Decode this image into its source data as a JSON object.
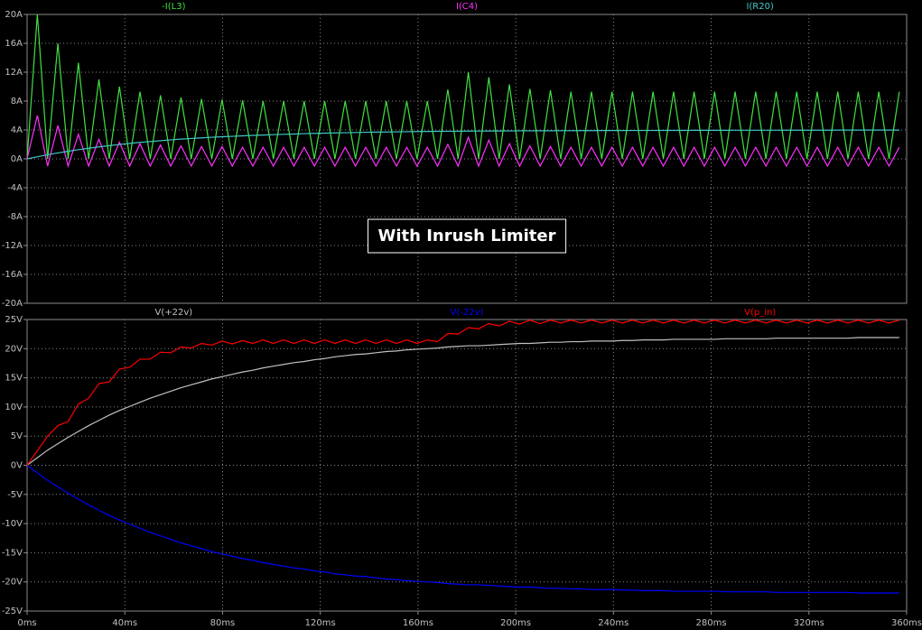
{
  "chart_data": [
    {
      "type": "line",
      "x": [
        0,
        4.2,
        8.4,
        12.6,
        16.8,
        21,
        25.2,
        29.4,
        33.6,
        37.8,
        42,
        46.2,
        50.4,
        54.6,
        58.8,
        63,
        67.2,
        71.4,
        75.6,
        79.8,
        84,
        88.2,
        92.4,
        96.6,
        100.8,
        105,
        109.2,
        113.4,
        117.6,
        121.8,
        126,
        130.2,
        134.4,
        138.6,
        142.8,
        147,
        151.2,
        155.4,
        159.6,
        163.8,
        168,
        172.2,
        176.4,
        180.6,
        184.8,
        189,
        193.2,
        197.4,
        201.6,
        205.8,
        210,
        214.2,
        218.4,
        222.6,
        226.8,
        231,
        235.2,
        239.4,
        243.6,
        247.8,
        252,
        256.2,
        260.4,
        264.6,
        268.8,
        273,
        277.2,
        281.4,
        285.6,
        289.8,
        294,
        298.2,
        302.4,
        306.6,
        310.8,
        315,
        319.2,
        323.4,
        327.6,
        331.8,
        336,
        340.2,
        344.4,
        348.6,
        352.8,
        357
      ],
      "xlim": [
        0,
        360
      ],
      "ylim": [
        -20,
        20
      ],
      "yticks": [
        {
          "value": 20,
          "label": "20A"
        },
        {
          "value": 16,
          "label": "16A"
        },
        {
          "value": 12,
          "label": "12A"
        },
        {
          "value": 8,
          "label": "8A"
        },
        {
          "value": 4,
          "label": "4A"
        },
        {
          "value": 0,
          "label": "0A"
        },
        {
          "value": -4,
          "label": "-4A"
        },
        {
          "value": -8,
          "label": "-8A"
        },
        {
          "value": -12,
          "label": "-12A"
        },
        {
          "value": -16,
          "label": "-16A"
        },
        {
          "value": -20,
          "label": "-20A"
        }
      ],
      "grid": true,
      "annotation": "With Inrush Limiter",
      "series": [
        {
          "name": "-I(L3)",
          "color": "#40e040",
          "values": [
            0,
            20,
            0,
            16,
            0,
            13.3,
            0,
            11,
            0,
            10,
            0,
            9.3,
            0,
            8.8,
            0,
            8.5,
            0,
            8.3,
            0,
            8.2,
            0,
            8.1,
            0,
            8,
            0,
            8,
            0,
            8,
            0,
            8,
            0,
            8,
            0,
            8,
            0,
            8,
            0,
            8,
            0,
            8,
            0,
            9.6,
            0,
            12,
            0,
            11.3,
            0,
            10.3,
            0,
            9.7,
            0,
            9.5,
            0,
            9.3,
            0,
            9.3,
            0,
            9.3,
            0,
            9.3,
            0,
            9.3,
            0,
            9.3,
            0,
            9.3,
            0,
            9.3,
            0,
            9.3,
            0,
            9.3,
            0,
            9.3,
            0,
            9.3,
            0,
            9.3,
            0,
            9.3,
            0,
            9.3,
            0,
            9.3,
            0,
            9.3
          ]
        },
        {
          "name": "I(C4)",
          "color": "#ff30ff",
          "values": [
            0,
            6,
            -1,
            4.6,
            -1,
            3.4,
            -1,
            2.7,
            -1,
            2.3,
            -1,
            2.1,
            -1,
            1.9,
            -1,
            1.8,
            -1,
            1.7,
            -1,
            1.7,
            -1,
            1.6,
            -1,
            1.6,
            -1,
            1.6,
            -1,
            1.6,
            -1,
            1.6,
            -1,
            1.6,
            -1,
            1.6,
            -1,
            1.6,
            -1,
            1.6,
            -1,
            1.6,
            -1,
            2,
            -1,
            3,
            -1,
            2.6,
            -1,
            2.1,
            -1,
            1.8,
            -1,
            1.7,
            -1,
            1.6,
            -1,
            1.6,
            -1,
            1.6,
            -1,
            1.6,
            -1,
            1.6,
            -1,
            1.6,
            -1,
            1.6,
            -1,
            1.6,
            -1,
            1.6,
            -1,
            1.6,
            -1,
            1.6,
            -1,
            1.6,
            -1,
            1.6,
            -1,
            1.6,
            -1,
            1.6,
            -1,
            1.6,
            -1,
            1.6
          ]
        },
        {
          "name": "I(R20)",
          "color": "#40c8c8",
          "values": [
            0,
            0.29,
            0.57,
            0.82,
            1.05,
            1.27,
            1.47,
            1.66,
            1.83,
            1.99,
            2.14,
            2.28,
            2.4,
            2.52,
            2.63,
            2.73,
            2.82,
            2.91,
            2.99,
            3.06,
            3.12,
            3.19,
            3.25,
            3.3,
            3.35,
            3.4,
            3.44,
            3.49,
            3.53,
            3.56,
            3.59,
            3.62,
            3.65,
            3.68,
            3.7,
            3.72,
            3.74,
            3.76,
            3.78,
            3.8,
            3.81,
            3.82,
            3.83,
            3.84,
            3.85,
            3.86,
            3.86,
            3.87,
            3.88,
            3.88,
            3.89,
            3.89,
            3.9,
            3.9,
            3.91,
            3.91,
            3.92,
            3.92,
            3.92,
            3.93,
            3.93,
            3.93,
            3.94,
            3.94,
            3.94,
            3.95,
            3.95,
            3.95,
            3.95,
            3.96,
            3.96,
            3.96,
            3.96,
            3.96,
            3.97,
            3.97,
            3.97,
            3.97,
            3.97,
            3.98,
            3.98,
            3.98,
            3.98,
            3.98,
            3.98,
            3.98
          ]
        }
      ]
    },
    {
      "type": "line",
      "x": [
        0,
        4.2,
        8.4,
        12.6,
        16.8,
        21,
        25.2,
        29.4,
        33.6,
        37.8,
        42,
        46.2,
        50.4,
        54.6,
        58.8,
        63,
        67.2,
        71.4,
        75.6,
        79.8,
        84,
        88.2,
        92.4,
        96.6,
        100.8,
        105,
        109.2,
        113.4,
        117.6,
        121.8,
        126,
        130.2,
        134.4,
        138.6,
        142.8,
        147,
        151.2,
        155.4,
        159.6,
        163.8,
        168,
        172.2,
        176.4,
        180.6,
        184.8,
        189,
        193.2,
        197.4,
        201.6,
        205.8,
        210,
        214.2,
        218.4,
        222.6,
        226.8,
        231,
        235.2,
        239.4,
        243.6,
        247.8,
        252,
        256.2,
        260.4,
        264.6,
        268.8,
        273,
        277.2,
        281.4,
        285.6,
        289.8,
        294,
        298.2,
        302.4,
        306.6,
        310.8,
        315,
        319.2,
        323.4,
        327.6,
        331.8,
        336,
        340.2,
        344.4,
        348.6,
        352.8,
        357
      ],
      "xlim": [
        0,
        360
      ],
      "xticks": [
        {
          "value": 0,
          "label": "0ms"
        },
        {
          "value": 40,
          "label": "40ms"
        },
        {
          "value": 80,
          "label": "80ms"
        },
        {
          "value": 120,
          "label": "120ms"
        },
        {
          "value": 160,
          "label": "160ms"
        },
        {
          "value": 200,
          "label": "200ms"
        },
        {
          "value": 240,
          "label": "240ms"
        },
        {
          "value": 280,
          "label": "280ms"
        },
        {
          "value": 320,
          "label": "320ms"
        },
        {
          "value": 360,
          "label": "360ms"
        }
      ],
      "ylim": [
        -25,
        25
      ],
      "yticks": [
        {
          "value": 25,
          "label": "25V"
        },
        {
          "value": 20,
          "label": "20V"
        },
        {
          "value": 15,
          "label": "15V"
        },
        {
          "value": 10,
          "label": "10V"
        },
        {
          "value": 5,
          "label": "5V"
        },
        {
          "value": 0,
          "label": "0V"
        },
        {
          "value": -5,
          "label": "-5V"
        },
        {
          "value": -10,
          "label": "-10V"
        },
        {
          "value": -15,
          "label": "-15V"
        },
        {
          "value": -20,
          "label": "-20V"
        },
        {
          "value": -25,
          "label": "-25V"
        }
      ],
      "grid": true,
      "series": [
        {
          "name": "V(+22v)",
          "color": "#c0c0c0",
          "values": [
            0,
            1.3,
            2.6,
            3.7,
            4.8,
            5.8,
            6.8,
            7.7,
            8.6,
            9.4,
            10.1,
            10.8,
            11.5,
            12.1,
            12.7,
            13.3,
            13.8,
            14.3,
            14.8,
            15.2,
            15.6,
            16,
            16.3,
            16.7,
            17,
            17.3,
            17.6,
            17.8,
            18.1,
            18.3,
            18.6,
            18.8,
            19,
            19.1,
            19.3,
            19.5,
            19.6,
            19.8,
            19.9,
            20,
            20.1,
            20.3,
            20.4,
            20.5,
            20.5,
            20.6,
            20.7,
            20.8,
            20.9,
            20.9,
            21,
            21.1,
            21.1,
            21.2,
            21.2,
            21.3,
            21.3,
            21.3,
            21.4,
            21.4,
            21.5,
            21.5,
            21.5,
            21.6,
            21.6,
            21.6,
            21.6,
            21.6,
            21.7,
            21.7,
            21.7,
            21.7,
            21.7,
            21.8,
            21.8,
            21.8,
            21.8,
            21.8,
            21.8,
            21.8,
            21.8,
            21.9,
            21.9,
            21.9,
            21.9,
            21.9
          ]
        },
        {
          "name": "V(-22v)",
          "color": "#0000ff",
          "values": [
            0,
            -1.3,
            -2.6,
            -3.7,
            -4.8,
            -5.8,
            -6.8,
            -7.7,
            -8.6,
            -9.4,
            -10.1,
            -10.8,
            -11.5,
            -12.1,
            -12.7,
            -13.3,
            -13.8,
            -14.3,
            -14.8,
            -15.2,
            -15.6,
            -16,
            -16.3,
            -16.7,
            -17,
            -17.3,
            -17.6,
            -17.8,
            -18.1,
            -18.3,
            -18.6,
            -18.8,
            -19,
            -19.1,
            -19.3,
            -19.5,
            -19.6,
            -19.8,
            -19.9,
            -20,
            -20.1,
            -20.3,
            -20.4,
            -20.5,
            -20.5,
            -20.6,
            -20.7,
            -20.8,
            -20.9,
            -20.9,
            -21,
            -21.1,
            -21.1,
            -21.2,
            -21.2,
            -21.3,
            -21.3,
            -21.3,
            -21.4,
            -21.4,
            -21.5,
            -21.5,
            -21.5,
            -21.6,
            -21.6,
            -21.6,
            -21.6,
            -21.6,
            -21.7,
            -21.7,
            -21.7,
            -21.7,
            -21.7,
            -21.8,
            -21.8,
            -21.8,
            -21.8,
            -21.8,
            -21.8,
            -21.8,
            -21.8,
            -21.9,
            -21.9,
            -21.9,
            -21.9,
            -21.9
          ]
        },
        {
          "name": "V(p_in)",
          "color": "#ff0000",
          "values": [
            0,
            2.5,
            5,
            6.8,
            7.5,
            10.5,
            11.5,
            14,
            14.3,
            16.5,
            16.8,
            18.2,
            18.2,
            19.4,
            19.3,
            20.3,
            20.1,
            20.9,
            20.6,
            21.3,
            20.8,
            21.4,
            20.9,
            21.5,
            20.9,
            21.5,
            20.9,
            21.5,
            20.9,
            21.5,
            20.9,
            21.5,
            20.9,
            21.5,
            20.9,
            21.5,
            20.9,
            21.5,
            20.9,
            21.5,
            21.2,
            22.6,
            22.5,
            23.6,
            23.4,
            24.3,
            23.9,
            24.7,
            24.2,
            24.9,
            24.3,
            24.9,
            24.4,
            24.9,
            24.4,
            24.9,
            24.4,
            24.9,
            24.4,
            24.9,
            24.4,
            24.9,
            24.4,
            24.9,
            24.4,
            24.9,
            24.4,
            24.9,
            24.4,
            24.9,
            24.4,
            24.9,
            24.4,
            24.9,
            24.4,
            24.9,
            24.4,
            24.9,
            24.4,
            24.9,
            24.4,
            24.9,
            24.4,
            24.9,
            24.4,
            24.9
          ]
        }
      ]
    }
  ]
}
